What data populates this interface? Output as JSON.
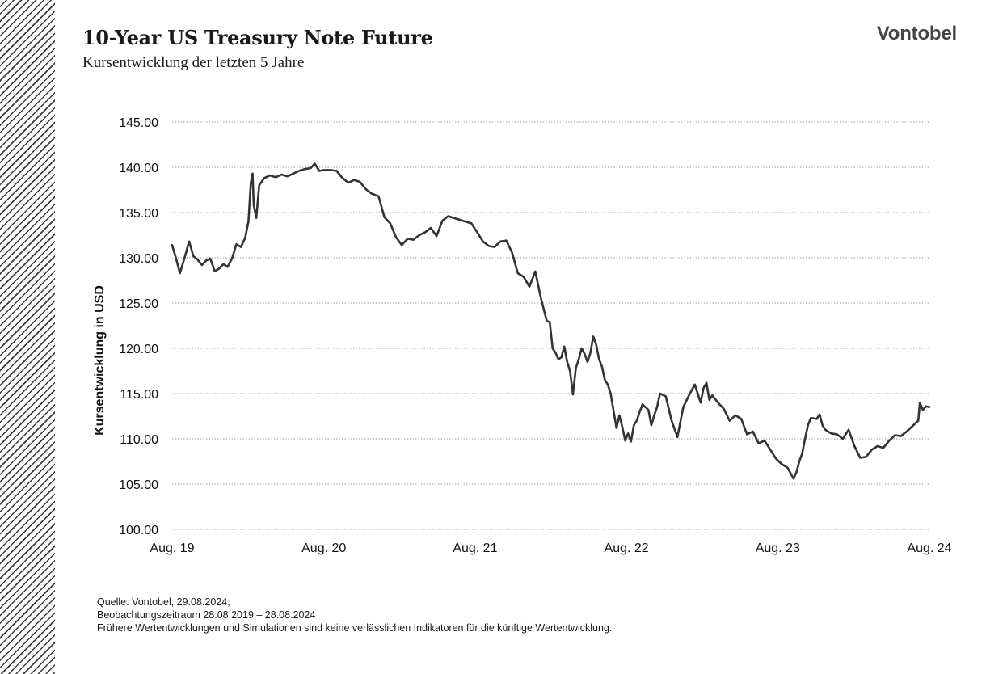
{
  "header": {
    "title": "10-Year US Treasury Note Future",
    "subtitle": "Kursentwicklung der letzten 5 Jahre",
    "logo_text": "Vontobel"
  },
  "footnote": {
    "line1": "Quelle: Vontobel, 29.08.2024;",
    "line2": "Beobachtungszeitraum 28.08.2019 – 28.08.2024",
    "line3": "Frühere Wertentwicklungen und Simulationen sind keine verlässlichen Indikatoren für die künftige Wertentwicklung."
  },
  "colors": {
    "line": "#333333",
    "grid": "#999999",
    "hatch": "#3a3a3a"
  },
  "chart_data": {
    "type": "line",
    "title": "10-Year US Treasury Note Future",
    "subtitle": "Kursentwicklung der letzten 5 Jahre",
    "xlabel": "",
    "ylabel": "Kursentwicklung in USD",
    "ylim": [
      100,
      145
    ],
    "y_ticks": [
      "100.00",
      "105.00",
      "110.00",
      "115.00",
      "120.00",
      "125.00",
      "130.00",
      "135.00",
      "140.00",
      "145.00"
    ],
    "x_tick_labels": [
      "Aug. 19",
      "Aug. 20",
      "Aug. 21",
      "Aug. 22",
      "Aug. 23",
      "Aug. 24"
    ],
    "x_tick_dates": [
      "2019-08-28",
      "2020-08-28",
      "2021-08-28",
      "2022-08-28",
      "2023-08-28",
      "2024-08-28"
    ],
    "grid": "horizontal dotted",
    "legend": "none",
    "series": [
      {
        "x": [
          "2019-08-28",
          "2019-09-06",
          "2019-09-16",
          "2019-09-27",
          "2019-10-08",
          "2019-10-18",
          "2019-10-28",
          "2019-11-08",
          "2019-11-18",
          "2019-11-28",
          "2019-12-09",
          "2019-12-19",
          "2019-12-30",
          "2020-01-09",
          "2020-01-20",
          "2020-01-30",
          "2020-02-10",
          "2020-02-20",
          "2020-02-28",
          "2020-03-05",
          "2020-03-09",
          "2020-03-12",
          "2020-03-18",
          "2020-03-25",
          "2020-04-06",
          "2020-04-20",
          "2020-05-04",
          "2020-05-18",
          "2020-06-01",
          "2020-06-15",
          "2020-06-29",
          "2020-07-13",
          "2020-07-27",
          "2020-08-06",
          "2020-08-17",
          "2020-08-28",
          "2020-09-14",
          "2020-09-28",
          "2020-10-12",
          "2020-10-26",
          "2020-11-09",
          "2020-11-23",
          "2020-12-07",
          "2020-12-21",
          "2021-01-07",
          "2021-01-21",
          "2021-02-04",
          "2021-02-18",
          "2021-03-04",
          "2021-03-18",
          "2021-04-01",
          "2021-04-15",
          "2021-04-29",
          "2021-05-13",
          "2021-05-27",
          "2021-06-10",
          "2021-06-24",
          "2021-07-08",
          "2021-07-22",
          "2021-08-05",
          "2021-08-19",
          "2021-09-02",
          "2021-09-16",
          "2021-09-30",
          "2021-10-14",
          "2021-10-28",
          "2021-11-11",
          "2021-11-25",
          "2021-12-09",
          "2021-12-23",
          "2022-01-06",
          "2022-01-20",
          "2022-02-03",
          "2022-02-17",
          "2022-02-24",
          "2022-03-03",
          "2022-03-10",
          "2022-03-17",
          "2022-03-24",
          "2022-03-31",
          "2022-04-07",
          "2022-04-14",
          "2022-04-21",
          "2022-04-28",
          "2022-05-05",
          "2022-05-12",
          "2022-05-19",
          "2022-05-26",
          "2022-06-02",
          "2022-06-09",
          "2022-06-16",
          "2022-06-23",
          "2022-06-30",
          "2022-07-07",
          "2022-07-14",
          "2022-07-21",
          "2022-07-28",
          "2022-08-04",
          "2022-08-11",
          "2022-08-18",
          "2022-08-25",
          "2022-09-01",
          "2022-09-08",
          "2022-09-15",
          "2022-09-22",
          "2022-09-29",
          "2022-10-06",
          "2022-10-13",
          "2022-10-20",
          "2022-10-27",
          "2022-11-03",
          "2022-11-10",
          "2022-11-17",
          "2022-12-01",
          "2022-12-15",
          "2022-12-29",
          "2023-01-12",
          "2023-01-26",
          "2023-02-09",
          "2023-02-23",
          "2023-03-02",
          "2023-03-09",
          "2023-03-16",
          "2023-03-23",
          "2023-04-06",
          "2023-04-20",
          "2023-05-04",
          "2023-05-18",
          "2023-06-01",
          "2023-06-15",
          "2023-06-29",
          "2023-07-13",
          "2023-07-27",
          "2023-08-10",
          "2023-08-24",
          "2023-09-07",
          "2023-09-21",
          "2023-10-05",
          "2023-10-12",
          "2023-10-19",
          "2023-10-26",
          "2023-11-02",
          "2023-11-09",
          "2023-11-16",
          "2023-11-30",
          "2023-12-07",
          "2023-12-14",
          "2023-12-21",
          "2024-01-04",
          "2024-01-18",
          "2024-02-01",
          "2024-02-15",
          "2024-02-29",
          "2024-03-14",
          "2024-03-28",
          "2024-04-11",
          "2024-04-25",
          "2024-05-09",
          "2024-05-23",
          "2024-06-06",
          "2024-06-20",
          "2024-07-04",
          "2024-07-18",
          "2024-08-01",
          "2024-08-05",
          "2024-08-12",
          "2024-08-20",
          "2024-08-28"
        ],
        "values": [
          131.4,
          130.0,
          128.3,
          130.0,
          131.8,
          130.2,
          129.8,
          129.2,
          129.7,
          129.9,
          128.5,
          128.8,
          129.3,
          129.0,
          130.0,
          131.5,
          131.2,
          132.2,
          134.0,
          138.3,
          139.3,
          135.8,
          134.4,
          138.0,
          138.8,
          139.1,
          138.9,
          139.2,
          139.0,
          139.3,
          139.6,
          139.8,
          139.9,
          140.4,
          139.6,
          139.7,
          139.7,
          139.6,
          138.8,
          138.3,
          138.6,
          138.4,
          137.6,
          137.1,
          136.8,
          134.5,
          133.8,
          132.3,
          131.4,
          132.1,
          132.0,
          132.5,
          132.8,
          133.3,
          132.4,
          134.1,
          134.6,
          134.4,
          134.2,
          134.0,
          133.8,
          132.8,
          131.8,
          131.3,
          131.2,
          131.8,
          131.9,
          130.6,
          128.3,
          127.9,
          126.8,
          128.5,
          125.5,
          123.0,
          122.9,
          120.0,
          119.5,
          118.8,
          119.0,
          120.2,
          118.5,
          117.5,
          114.9,
          117.8,
          118.8,
          120.0,
          119.4,
          118.5,
          119.5,
          121.3,
          120.4,
          118.8,
          118.0,
          116.5,
          116.0,
          115.0,
          113.1,
          111.2,
          112.6,
          111.3,
          109.8,
          110.6,
          109.7,
          111.5,
          112.0,
          113.0,
          113.8,
          113.5,
          113.2,
          111.5,
          112.6,
          113.5,
          115.0,
          114.7,
          112.0,
          110.2,
          113.5,
          114.8,
          116.0,
          114.0,
          115.6,
          116.2,
          114.3,
          114.8,
          114.0,
          113.3,
          112.0,
          112.6,
          112.2,
          110.5,
          110.8,
          109.5,
          109.8,
          108.8,
          107.8,
          107.2,
          106.8,
          105.6,
          106.3,
          107.5,
          108.4,
          110.0,
          111.5,
          112.3,
          112.2,
          112.7,
          111.5,
          111.0,
          110.6,
          110.5,
          110.0,
          111.0,
          109.2,
          107.9,
          108.0,
          108.8,
          109.2,
          109.0,
          109.8,
          110.4,
          110.3,
          110.8,
          111.4,
          112.0,
          114.0,
          113.2,
          113.6,
          113.5
        ]
      }
    ]
  }
}
